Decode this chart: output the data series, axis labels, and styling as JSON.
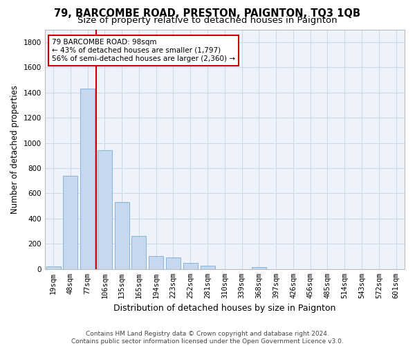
{
  "title": "79, BARCOMBE ROAD, PRESTON, PAIGNTON, TQ3 1QB",
  "subtitle": "Size of property relative to detached houses in Paignton",
  "xlabel": "Distribution of detached houses by size in Paignton",
  "ylabel": "Number of detached properties",
  "categories": [
    "19sqm",
    "48sqm",
    "77sqm",
    "106sqm",
    "135sqm",
    "165sqm",
    "194sqm",
    "223sqm",
    "252sqm",
    "281sqm",
    "310sqm",
    "339sqm",
    "368sqm",
    "397sqm",
    "426sqm",
    "456sqm",
    "485sqm",
    "514sqm",
    "543sqm",
    "572sqm",
    "601sqm"
  ],
  "values": [
    22,
    740,
    1430,
    940,
    530,
    265,
    105,
    93,
    48,
    27,
    0,
    0,
    17,
    0,
    0,
    0,
    0,
    0,
    0,
    0,
    0
  ],
  "bar_color": "#c5d8f0",
  "bar_edge_color": "#7aadd4",
  "vline_color": "#cc0000",
  "vline_x_index": 2.5,
  "annotation_text": "79 BARCOMBE ROAD: 98sqm\n← 43% of detached houses are smaller (1,797)\n56% of semi-detached houses are larger (2,360) →",
  "annotation_box_facecolor": "#ffffff",
  "annotation_box_edgecolor": "#cc0000",
  "ylim": [
    0,
    1900
  ],
  "yticks": [
    0,
    200,
    400,
    600,
    800,
    1000,
    1200,
    1400,
    1600,
    1800
  ],
  "grid_color": "#d0d8e8",
  "bg_color": "#eef2fa",
  "footer": "Contains HM Land Registry data © Crown copyright and database right 2024.\nContains public sector information licensed under the Open Government Licence v3.0.",
  "title_fontsize": 10.5,
  "subtitle_fontsize": 9.5,
  "xlabel_fontsize": 9,
  "ylabel_fontsize": 8.5,
  "tick_fontsize": 7.5,
  "annot_fontsize": 7.5,
  "footer_fontsize": 6.5,
  "bar_width": 0.85
}
